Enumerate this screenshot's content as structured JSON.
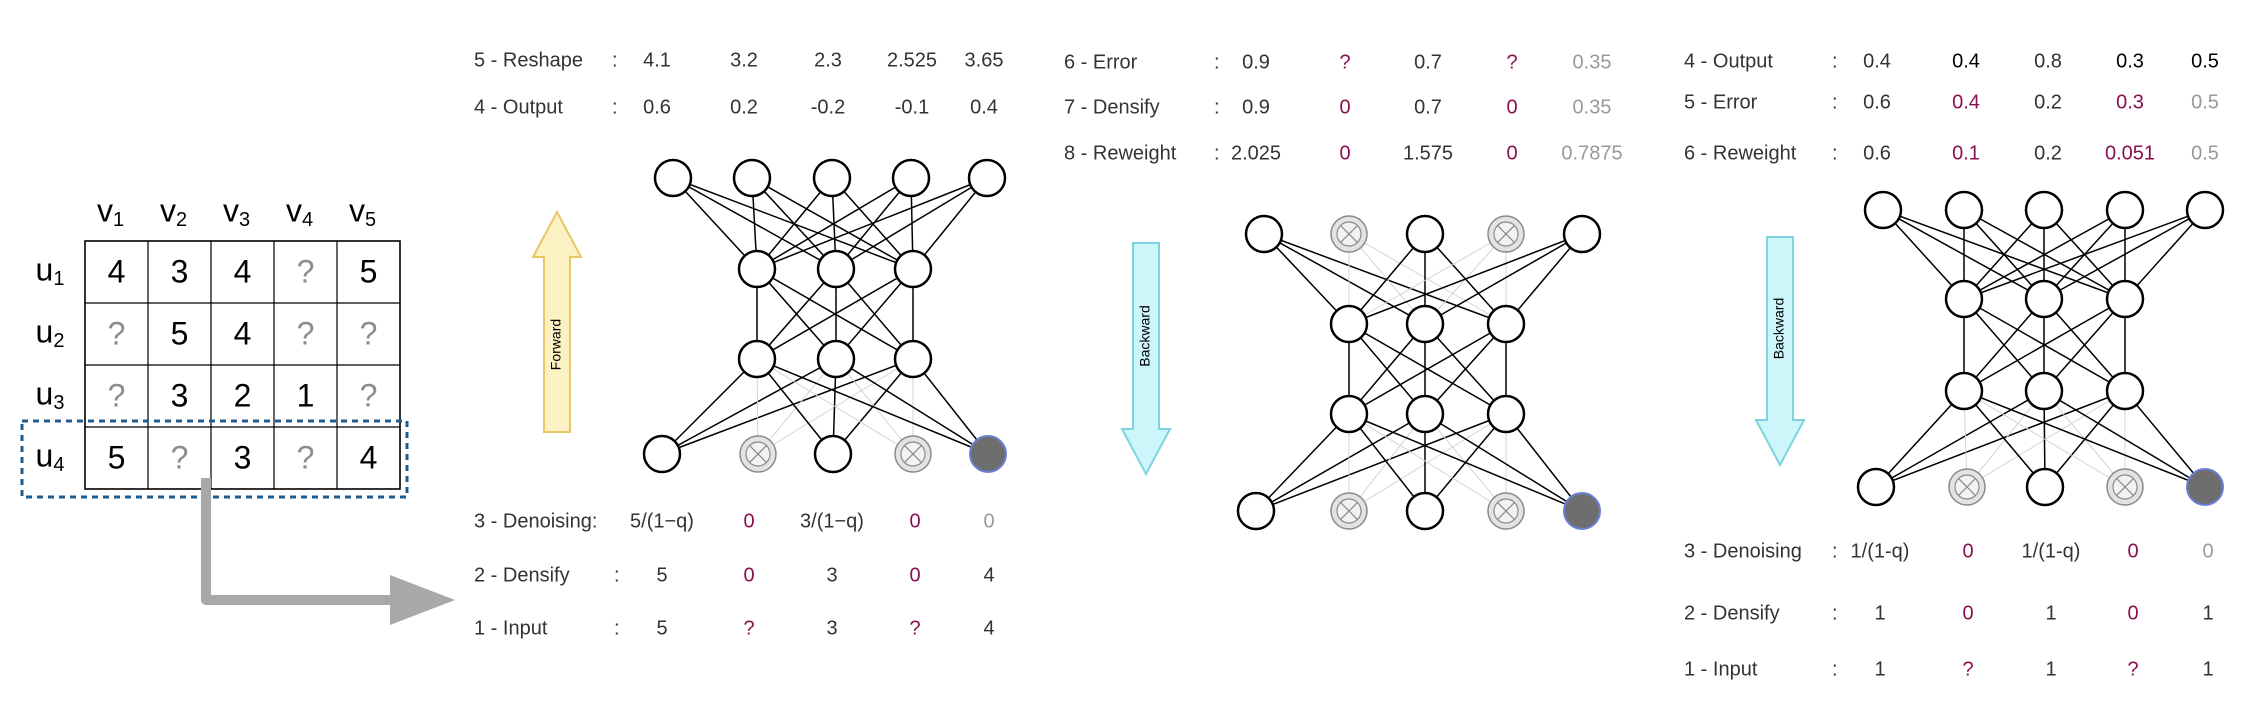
{
  "colors": {
    "line": "#000000",
    "muted_text": "#999999",
    "magenta": "#8a1050",
    "dark_text": "#333333",
    "forward_arrow_fill": "#fbf1c2",
    "forward_arrow_stroke": "#e8c866",
    "backward_arrow_fill": "#cdf6fb",
    "backward_arrow_stroke": "#7fd3e0",
    "grey_arrow": "#a8a8a8",
    "dashed_box": "#1f5b8c",
    "filled_node": "#6e6e6e",
    "filled_node_stroke": "#6a7fd8"
  },
  "matrix": {
    "column_headers": [
      {
        "base": "v",
        "sub": "1"
      },
      {
        "base": "v",
        "sub": "2"
      },
      {
        "base": "v",
        "sub": "3"
      },
      {
        "base": "v",
        "sub": "4"
      },
      {
        "base": "v",
        "sub": "5"
      }
    ],
    "row_headers": [
      {
        "base": "u",
        "sub": "1"
      },
      {
        "base": "u",
        "sub": "2"
      },
      {
        "base": "u",
        "sub": "3"
      },
      {
        "base": "u",
        "sub": "4"
      }
    ],
    "rows": [
      [
        "4",
        "3",
        "4",
        "?",
        "5"
      ],
      [
        "?",
        "5",
        "4",
        "?",
        "?"
      ],
      [
        "?",
        "3",
        "2",
        "1",
        "?"
      ],
      [
        "5",
        "?",
        "3",
        "?",
        "4"
      ]
    ],
    "highlighted_row": 3
  },
  "panel1": {
    "arrow_label": "Forward",
    "top_rows": [
      {
        "label": "5 - Reshape",
        "sep": ":",
        "values": [
          "4.1",
          "3.2",
          "2.3",
          "2.525",
          "3.65"
        ],
        "colors": [
          "dark",
          "dark",
          "dark",
          "dark",
          "dark"
        ]
      },
      {
        "label": "4 - Output",
        "sep": ":",
        "values": [
          "0.6",
          "0.2",
          "-0.2",
          "-0.1",
          "0.4"
        ],
        "colors": [
          "dark",
          "dark",
          "dark",
          "dark",
          "dark"
        ]
      }
    ],
    "bottom_rows": [
      {
        "label": "3 - Denoising:",
        "sep": "",
        "values": [
          "5/(1−q)",
          "0",
          "3/(1−q)",
          "0",
          "0"
        ],
        "colors": [
          "dark",
          "magenta",
          "dark",
          "magenta",
          "muted"
        ]
      },
      {
        "label": "2 - Densify",
        "sep": ":",
        "values": [
          "5",
          "0",
          "3",
          "0",
          "4"
        ],
        "colors": [
          "dark",
          "magenta",
          "dark",
          "magenta",
          "dark"
        ]
      },
      {
        "label": "1 - Input",
        "sep": ":",
        "values": [
          "5",
          "?",
          "3",
          "?",
          "4"
        ],
        "colors": [
          "dark",
          "magenta",
          "dark",
          "magenta",
          "dark"
        ]
      }
    ]
  },
  "panel2": {
    "arrow_label": "Backward",
    "top_rows": [
      {
        "label": "6 - Error",
        "sep": ":",
        "values": [
          "0.9",
          "?",
          "0.7",
          "?",
          "0.35"
        ],
        "colors": [
          "dark",
          "magenta",
          "dark",
          "magenta",
          "muted"
        ]
      },
      {
        "label": "7 - Densify",
        "sep": ":",
        "values": [
          "0.9",
          "0",
          "0.7",
          "0",
          "0.35"
        ],
        "colors": [
          "dark",
          "magenta",
          "dark",
          "magenta",
          "muted"
        ]
      },
      {
        "label": "8 - Reweight",
        "sep": ":",
        "values": [
          "2.025",
          "0",
          "1.575",
          "0",
          "0.7875"
        ],
        "colors": [
          "dark",
          "magenta",
          "dark",
          "magenta",
          "muted"
        ]
      }
    ]
  },
  "panel3": {
    "arrow_label": "Backward",
    "top_rows": [
      {
        "label": "4 - Output",
        "sep": ":",
        "values": [
          "0.4",
          "0.4",
          "0.8",
          "0.3",
          "0.5"
        ],
        "colors": [
          "dark",
          "black",
          "dark",
          "black",
          "black"
        ]
      },
      {
        "label": "5 - Error",
        "sep": ":",
        "values": [
          "0.6",
          "0.4",
          "0.2",
          "0.3",
          "0.5"
        ],
        "colors": [
          "dark",
          "magenta",
          "dark",
          "magenta",
          "muted"
        ]
      },
      {
        "label": "6 - Reweight",
        "sep": ":",
        "values": [
          "0.6",
          "0.1",
          "0.2",
          "0.051",
          "0.5"
        ],
        "colors": [
          "dark",
          "magenta",
          "dark",
          "magenta",
          "muted"
        ]
      }
    ],
    "bottom_rows": [
      {
        "label": "3 - Denoising",
        "sep": ":",
        "values": [
          "1/(1-q)",
          "0",
          "1/(1-q)",
          "0",
          "0"
        ],
        "colors": [
          "dark",
          "magenta",
          "dark",
          "magenta",
          "muted"
        ]
      },
      {
        "label": "2 - Densify",
        "sep": ":",
        "values": [
          "1",
          "0",
          "1",
          "0",
          "1"
        ],
        "colors": [
          "dark",
          "magenta",
          "dark",
          "magenta",
          "dark"
        ]
      },
      {
        "label": "1 - Input",
        "sep": ":",
        "values": [
          "1",
          "?",
          "1",
          "?",
          "1"
        ],
        "colors": [
          "dark",
          "magenta",
          "dark",
          "magenta",
          "dark"
        ]
      }
    ]
  },
  "networks": [
    {
      "name": "network-forward",
      "top_nodes": [
        "normal",
        "normal",
        "normal",
        "normal",
        "normal"
      ],
      "bottom_nodes": [
        "normal",
        "crossed",
        "normal",
        "crossed",
        "filled"
      ]
    },
    {
      "name": "network-backward-1",
      "top_nodes": [
        "normal",
        "crossed",
        "normal",
        "crossed",
        "normal"
      ],
      "bottom_nodes": [
        "normal",
        "crossed",
        "normal",
        "crossed",
        "filled"
      ]
    },
    {
      "name": "network-backward-2",
      "top_nodes": [
        "normal",
        "normal",
        "normal",
        "normal",
        "normal"
      ],
      "bottom_nodes": [
        "normal",
        "crossed",
        "normal",
        "crossed",
        "filled"
      ]
    }
  ]
}
